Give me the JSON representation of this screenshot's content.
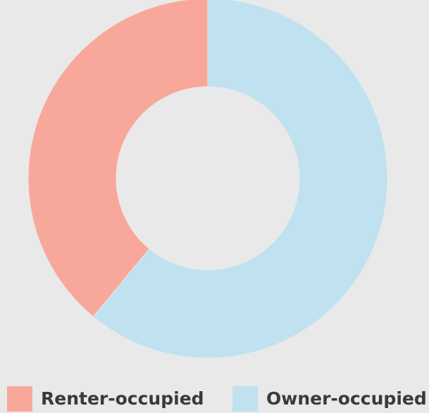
{
  "chart_data": {
    "type": "donut",
    "categories": [
      "Renter-occupied",
      "Owner-occupied"
    ],
    "values": [
      39,
      61
    ],
    "colors": [
      "#f8a89a",
      "#bfe1f0"
    ]
  }
}
